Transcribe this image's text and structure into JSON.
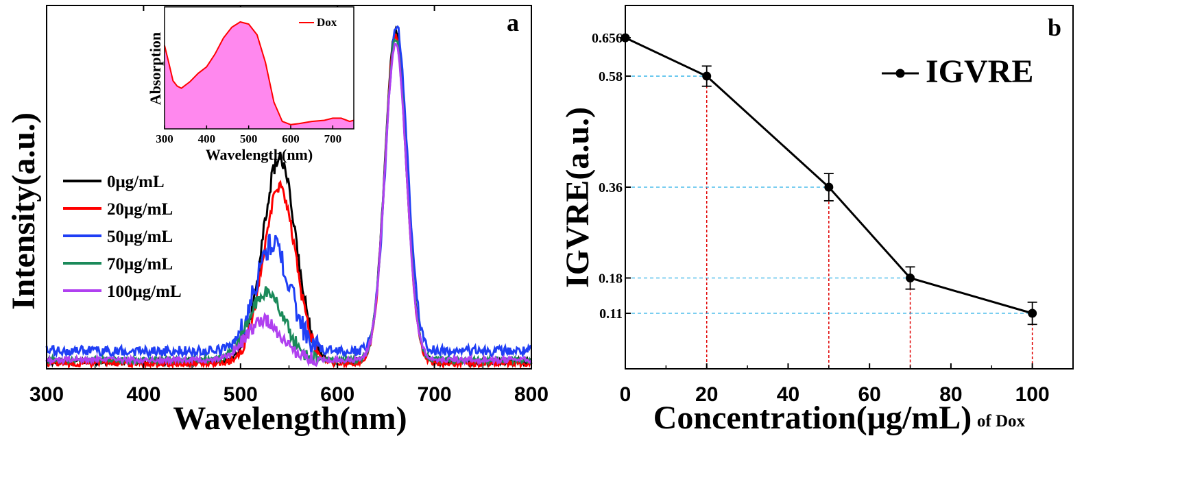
{
  "chart_data": [
    {
      "panel": "a",
      "type": "line",
      "xlabel": "Wavelength(nm)",
      "ylabel": "Intensity(a.u.)",
      "xlim": [
        300,
        800
      ],
      "xticks": [
        300,
        400,
        500,
        600,
        700,
        800
      ],
      "legend_position": "left",
      "series": [
        {
          "name": "0μg/mL",
          "color": "#000000",
          "noise": 0.008,
          "baseline": 0.02,
          "peaks": [
            {
              "center": 540,
              "height": 0.57,
              "width": 17
            },
            {
              "center": 660,
              "height": 0.93,
              "width": 11
            }
          ]
        },
        {
          "name": "20μg/mL",
          "color": "#ff0000",
          "noise": 0.008,
          "baseline": 0.015,
          "peaks": [
            {
              "center": 540,
              "height": 0.49,
              "width": 17
            },
            {
              "center": 660,
              "height": 0.92,
              "width": 11
            }
          ]
        },
        {
          "name": "50μg/mL",
          "color": "#1f3ff5",
          "noise": 0.014,
          "baseline": 0.05,
          "peaks": [
            {
              "center": 533,
              "height": 0.3,
              "width": 18
            },
            {
              "center": 661,
              "height": 0.91,
              "width": 11
            }
          ]
        },
        {
          "name": "70μg/mL",
          "color": "#1b8a5a",
          "noise": 0.008,
          "baseline": 0.025,
          "peaks": [
            {
              "center": 527,
              "height": 0.19,
              "width": 18
            },
            {
              "center": 660,
              "height": 0.9,
              "width": 11
            }
          ]
        },
        {
          "name": "100μg/mL",
          "color": "#b040f0",
          "noise": 0.008,
          "baseline": 0.025,
          "peaks": [
            {
              "center": 524,
              "height": 0.11,
              "width": 18
            },
            {
              "center": 660,
              "height": 0.89,
              "width": 11
            }
          ]
        }
      ],
      "inset": {
        "type": "area",
        "xlabel": "Wavelength(nm)",
        "ylabel": "Absorption",
        "xlim": [
          300,
          750
        ],
        "xticks": [
          300,
          400,
          500,
          600,
          700
        ],
        "series_name": "Dox",
        "line_color": "#ff0000",
        "fill_color": "#ff88ee",
        "x": [
          300,
          310,
          320,
          330,
          340,
          360,
          380,
          400,
          420,
          440,
          460,
          480,
          500,
          520,
          540,
          560,
          580,
          600,
          620,
          650,
          680,
          700,
          720,
          740,
          750
        ],
        "y": [
          0.78,
          0.62,
          0.45,
          0.4,
          0.38,
          0.44,
          0.52,
          0.58,
          0.7,
          0.85,
          0.95,
          1.0,
          0.98,
          0.88,
          0.62,
          0.25,
          0.07,
          0.04,
          0.05,
          0.07,
          0.08,
          0.1,
          0.1,
          0.07,
          0.08
        ]
      }
    },
    {
      "panel": "b",
      "type": "line",
      "xlabel": "Concentration(μg/mL)",
      "xlabel_suffix": "of Dox",
      "ylabel": "IGVRE(a.u.)",
      "xlim": [
        0,
        110
      ],
      "ylim": [
        0.0,
        0.72
      ],
      "xticks": [
        0,
        20,
        40,
        60,
        80,
        100
      ],
      "yticks": [
        0.11,
        0.18,
        0.36,
        0.58,
        0.656
      ],
      "ytick_labels": [
        "0.11",
        "0.18",
        "0.36",
        "0.58",
        "0.656"
      ],
      "legend_position": "top-right",
      "series": [
        {
          "name": "IGVRE",
          "color": "#000000",
          "x": [
            0,
            20,
            50,
            70,
            100
          ],
          "y": [
            0.656,
            0.58,
            0.36,
            0.18,
            0.11
          ],
          "err": [
            0.0,
            0.02,
            0.027,
            0.022,
            0.022
          ]
        }
      ]
    }
  ],
  "panel_a_letter": "a",
  "panel_b_letter": "b"
}
